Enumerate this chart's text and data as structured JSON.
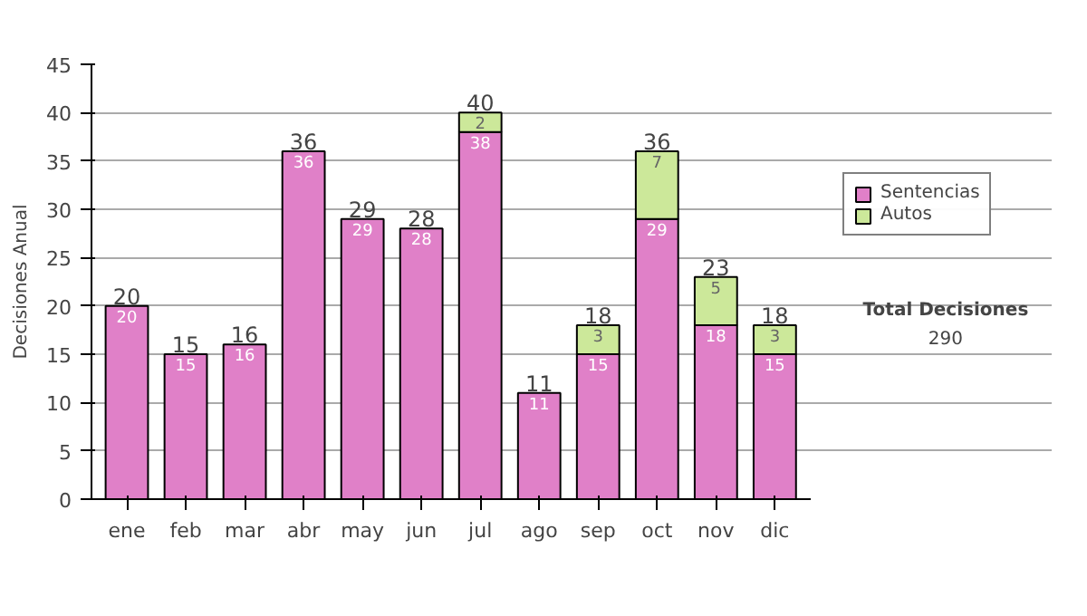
{
  "chart_data": {
    "type": "bar",
    "stacked": true,
    "categories": [
      "ene",
      "feb",
      "mar",
      "abr",
      "may",
      "jun",
      "jul",
      "ago",
      "sep",
      "oct",
      "nov",
      "dic"
    ],
    "series": [
      {
        "name": "Sentencias",
        "color": "#e080c8",
        "values": [
          20,
          15,
          16,
          36,
          29,
          28,
          38,
          11,
          15,
          29,
          18,
          15
        ]
      },
      {
        "name": "Autos",
        "color": "#cce89a",
        "values": [
          null,
          null,
          null,
          null,
          null,
          null,
          2,
          null,
          3,
          7,
          5,
          3
        ]
      }
    ],
    "totals": [
      "20",
      "15",
      "16",
      "36",
      "29",
      "28",
      "40",
      "11",
      "18",
      "36",
      "23",
      "18"
    ],
    "data_labels": true,
    "ylabel": "Decisiones Anual",
    "ylim": [
      0,
      45
    ],
    "yticks": [
      0,
      5,
      10,
      15,
      20,
      25,
      30,
      35,
      40,
      45
    ],
    "grid": "y",
    "legend": "right",
    "annotations": [
      "Total Decisiones",
      "290"
    ]
  }
}
